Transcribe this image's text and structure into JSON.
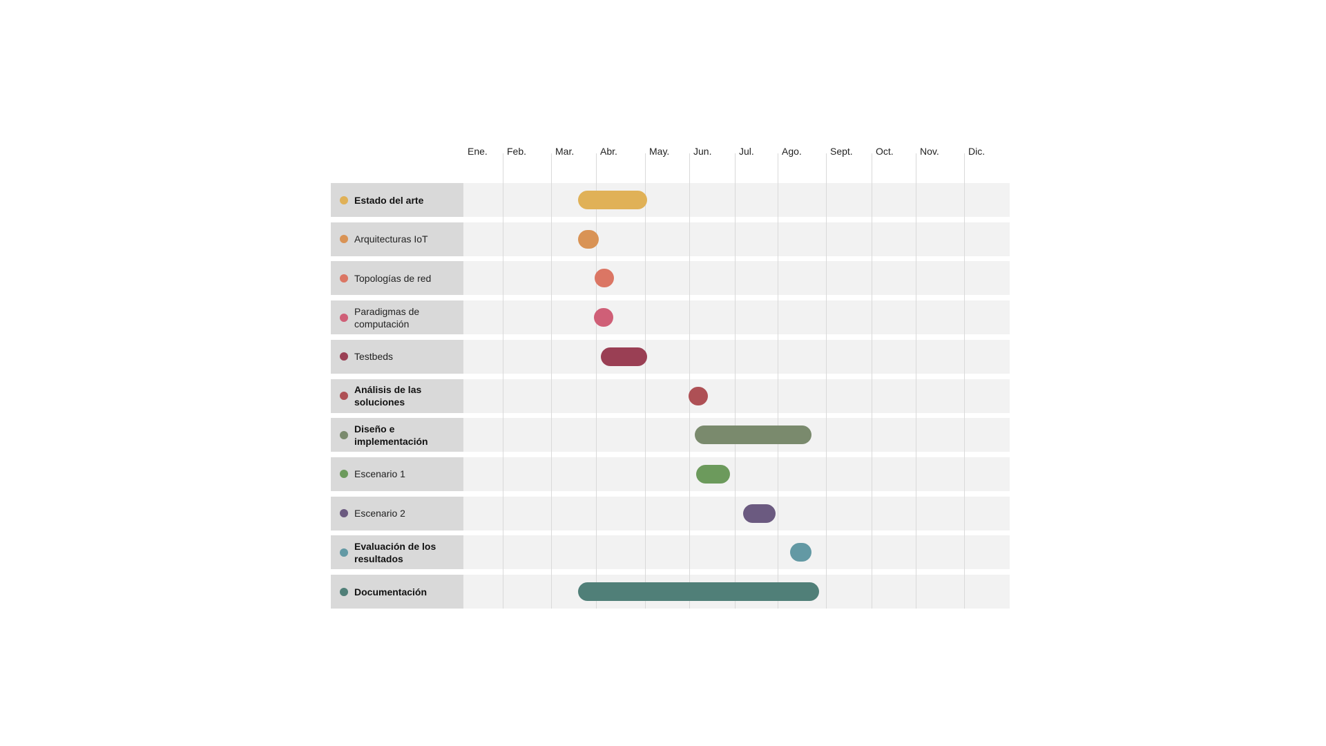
{
  "chart_data": {
    "type": "gantt",
    "months": [
      "Ene.",
      "Feb.",
      "Mar.",
      "Abr.",
      "May.",
      "Jun.",
      "Jul.",
      "Ago.",
      "Sept.",
      "Oct.",
      "Nov.",
      "Dic."
    ],
    "tasks": [
      {
        "label": "Estado del arte",
        "bold": true,
        "color": "#e0b157",
        "start_month": 3.6,
        "end_month": 5.05
      },
      {
        "label": "Arquitecturas IoT",
        "bold": false,
        "color": "#d99355",
        "start_month": 3.6,
        "end_month": 4.05
      },
      {
        "label": "Topologías de red",
        "bold": false,
        "color": "#db7664",
        "start_month": 4.15,
        "end_month": 4.2
      },
      {
        "label": "Paradigmas de computación",
        "bold": false,
        "color": "#cf5f77",
        "start_month": 4.13,
        "end_month": 4.17
      },
      {
        "label": "Testbeds",
        "bold": false,
        "color": "#9a3f54",
        "start_month": 4.1,
        "end_month": 5.05
      },
      {
        "label": "Análisis de las soluciones",
        "bold": true,
        "color": "#ae5055",
        "start_month": 6.05,
        "end_month": 6.35
      },
      {
        "label": "Diseño e implementación",
        "bold": true,
        "color": "#7a8a6d",
        "start_month": 6.12,
        "end_month": 8.7
      },
      {
        "label": "Escenario 1",
        "bold": false,
        "color": "#6c9a5c",
        "start_month": 6.15,
        "end_month": 6.9
      },
      {
        "label": "Escenario 2",
        "bold": false,
        "color": "#6b5a80",
        "start_month": 7.2,
        "end_month": 7.95
      },
      {
        "label": "Evaluación de los resultados",
        "bold": true,
        "color": "#6399a4",
        "start_month": 8.25,
        "end_month": 8.7
      },
      {
        "label": "Documentación",
        "bold": true,
        "color": "#507f78",
        "start_month": 3.6,
        "end_month": 8.85
      }
    ]
  }
}
